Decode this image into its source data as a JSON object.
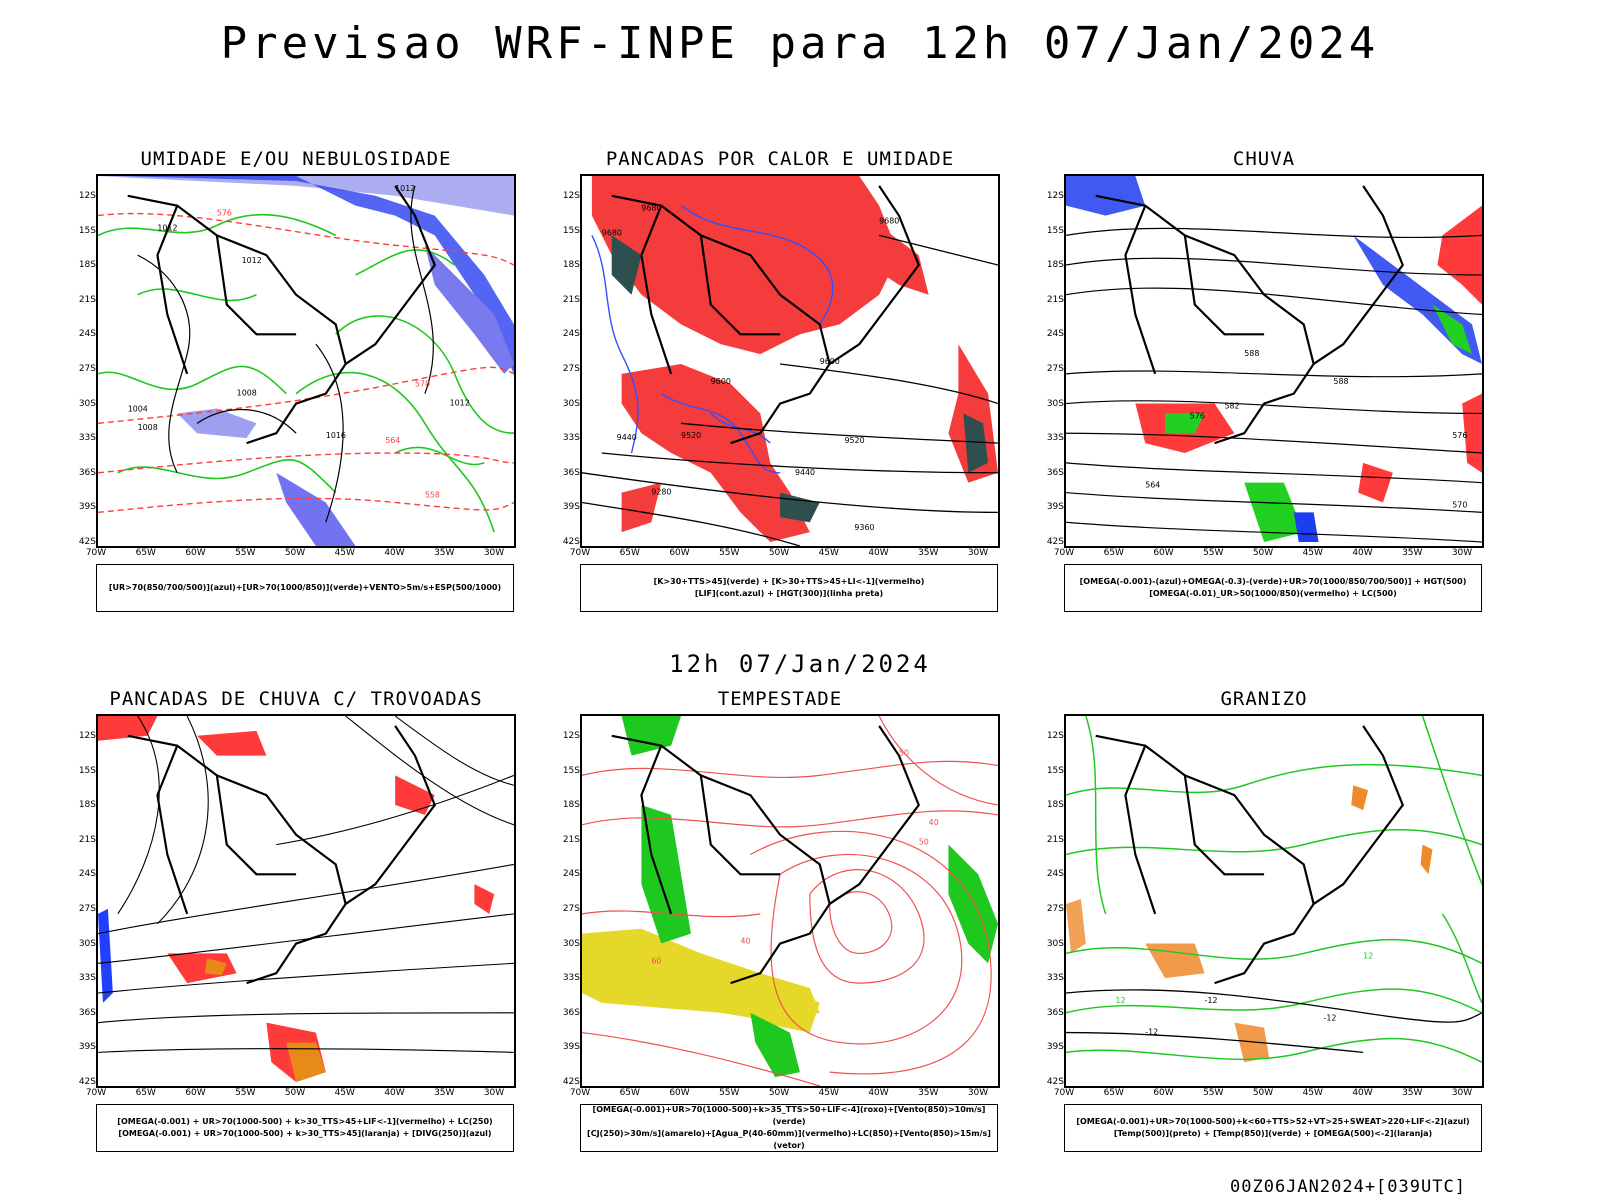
{
  "main_title": "Previsao WRF-INPE  para 12h 07/Jan/2024",
  "mid_time": "12h 07/Jan/2024",
  "footer_stamp": "00Z06JAN2024+[039UTC]",
  "lat_ticks": [
    "12S",
    "15S",
    "18S",
    "21S",
    "24S",
    "27S",
    "30S",
    "33S",
    "36S",
    "39S",
    "42S"
  ],
  "lon_ticks": [
    "70W",
    "65W",
    "60W",
    "55W",
    "50W",
    "45W",
    "40W",
    "35W",
    "30W"
  ],
  "panels": [
    {
      "title": "UMIDADE E/OU NEBULOSIDADE",
      "legend": [
        "[UR>70(850/700/500)](azul)+[UR>70(1000/850)](verde)+VENTO>5m/s+ESP(500/1000)"
      ],
      "contour_labels": [
        "1012",
        "1012",
        "1012",
        "1008",
        "1004",
        "1008",
        "1016",
        "1012",
        "576",
        "570",
        "564",
        "558"
      ],
      "colors": {
        "blue": "#2b3ff0",
        "lavender": "#9f9fef",
        "green": "#1ec81e",
        "red": "#ff3c3c"
      }
    },
    {
      "title": "PANCADAS POR CALOR E UMIDADE",
      "legend": [
        "[K>30+TTS>45](verde) + [K>30+TTS>45+LI<-1](vermelho)",
        "[LIF](cont.azul) + [HGT(300)](linha preta)"
      ],
      "contour_labels": [
        "9680",
        "9680",
        "9600",
        "9520",
        "9440",
        "9360",
        "9280",
        "9440",
        "9520",
        "9600",
        "9680"
      ],
      "colors": {
        "red": "#f53c3c",
        "dark": "#2f4f4f",
        "blue": "#3050ff"
      }
    },
    {
      "title": "CHUVA",
      "legend": [
        "[OMEGA(-0.001)-(azul)+OMEGA(-0.3)-(verde)+UR>70(1000/850/700/500)] + HGT(500)",
        "[OMEGA(-0.01)_UR>50(1000/850)(vermelho) + LC(500)"
      ],
      "contour_labels": [
        "588",
        "582",
        "576",
        "576",
        "570",
        "564",
        "588"
      ],
      "colors": {
        "red": "#ff3a3a",
        "green": "#22d022",
        "blue": "#1e3cf0"
      }
    },
    {
      "title": "PANCADAS DE CHUVA C/ TROVOADAS",
      "legend": [
        "[OMEGA(-0.001) + UR>70(1000-500) + k>30_TTS>45+LIF<-1](vermelho) + LC(250)",
        "[OMEGA(-0.001) + UR>70(1000-500) + k>30_TTS>45](laranja) + [DIVG(250)](azul)"
      ],
      "contour_labels": [],
      "colors": {
        "red": "#ff3a3a",
        "orange": "#e88a1a",
        "blue": "#2040ff"
      }
    },
    {
      "title": "TEMPESTADE",
      "legend": [
        "[OMEGA(-0.001)+UR>70(1000-500)+k>35_TTS>50+LIF<-4](roxo)+[Vento(850)>10m/s](verde)",
        "[CJ(250)>30m/s](amarelo)+[Agua_P(40-60mm)](vermelho)+LC(850)+[Vento(850)>15m/s](vetor)"
      ],
      "contour_labels": [
        "50",
        "40",
        "50",
        "60",
        "40"
      ],
      "colors": {
        "red": "#f05050",
        "green": "#1ec81e",
        "yellow": "#e6d828"
      }
    },
    {
      "title": "GRANIZO",
      "legend": [
        "[OMEGA(-0.001)+UR>70(1000-500)+k<60+TTS>52+VT>25+SWEAT>220+LIF<-2](azul)",
        "[Temp(500)](preto) + [Temp(850)](verde) + [OMEGA(500)<-2](laranja)"
      ],
      "contour_labels": [
        "-12",
        "-12",
        "-12",
        "12",
        "12"
      ],
      "colors": {
        "green": "#1ec81e",
        "orange": "#ee8a2a",
        "black": "#000000"
      }
    }
  ]
}
